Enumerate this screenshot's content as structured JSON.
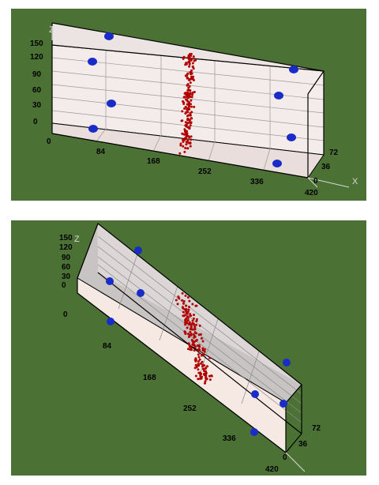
{
  "views": [
    {
      "name": "perspective-view-1",
      "axis_x": "X",
      "axis_z": "Z",
      "z_ticks": [
        "150",
        "120",
        "90",
        "60",
        "30",
        "0"
      ],
      "x_ticks": [
        "0",
        "84",
        "168",
        "252",
        "336",
        "420"
      ],
      "y_ticks": [
        "72",
        "36",
        "0"
      ]
    },
    {
      "name": "perspective-view-2",
      "axis_z": "Z",
      "z_ticks": [
        "150",
        "120",
        "90",
        "60",
        "30",
        "0"
      ],
      "x_ticks": [
        "0",
        "84",
        "168",
        "252",
        "336",
        "420"
      ],
      "y_ticks": [
        "72",
        "36",
        "0"
      ]
    }
  ],
  "colors": {
    "background": "#4b7234",
    "box_fill": "#f3ecea",
    "box_edge": "#000000",
    "grid": "#9a9a9a",
    "marker": "#1a2cc8",
    "point": "#b00000"
  }
}
